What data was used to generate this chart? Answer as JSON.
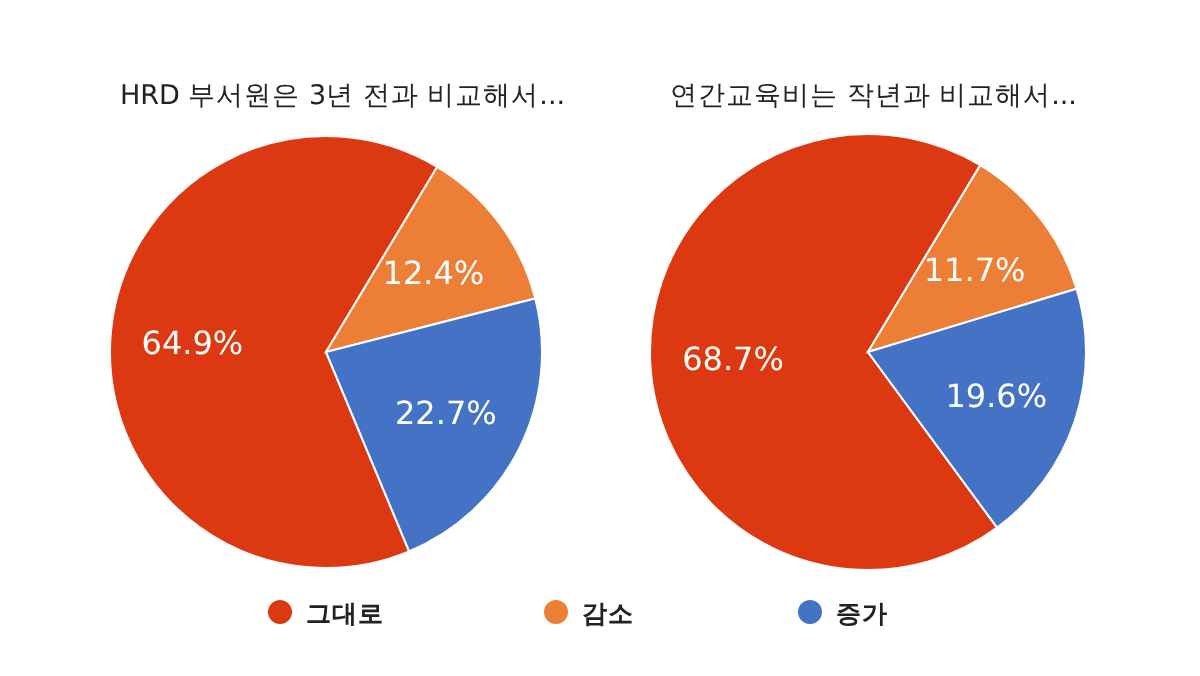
{
  "chart_data": [
    {
      "type": "pie",
      "title": "HRD 부서원은 3년 전과 비교해서...",
      "categories": [
        "그대로",
        "감소",
        "증가"
      ],
      "values": [
        64.9,
        12.4,
        22.7
      ],
      "value_labels": [
        "64.9%",
        "12.4%",
        "22.7%"
      ],
      "colors": [
        "#dc3912",
        "#ec7f35",
        "#4472c4"
      ],
      "legend": "bottom"
    },
    {
      "type": "pie",
      "title": "연간교육비는 작년과 비교해서...",
      "categories": [
        null,
        null,
        null
      ],
      "values": [
        68.7,
        11.7,
        19.6
      ],
      "value_labels": [
        "68.7%",
        "11.7%",
        "19.6%"
      ],
      "colors": [
        "#dc3912",
        "#ec7f35",
        "#4472c4"
      ]
    }
  ]
}
